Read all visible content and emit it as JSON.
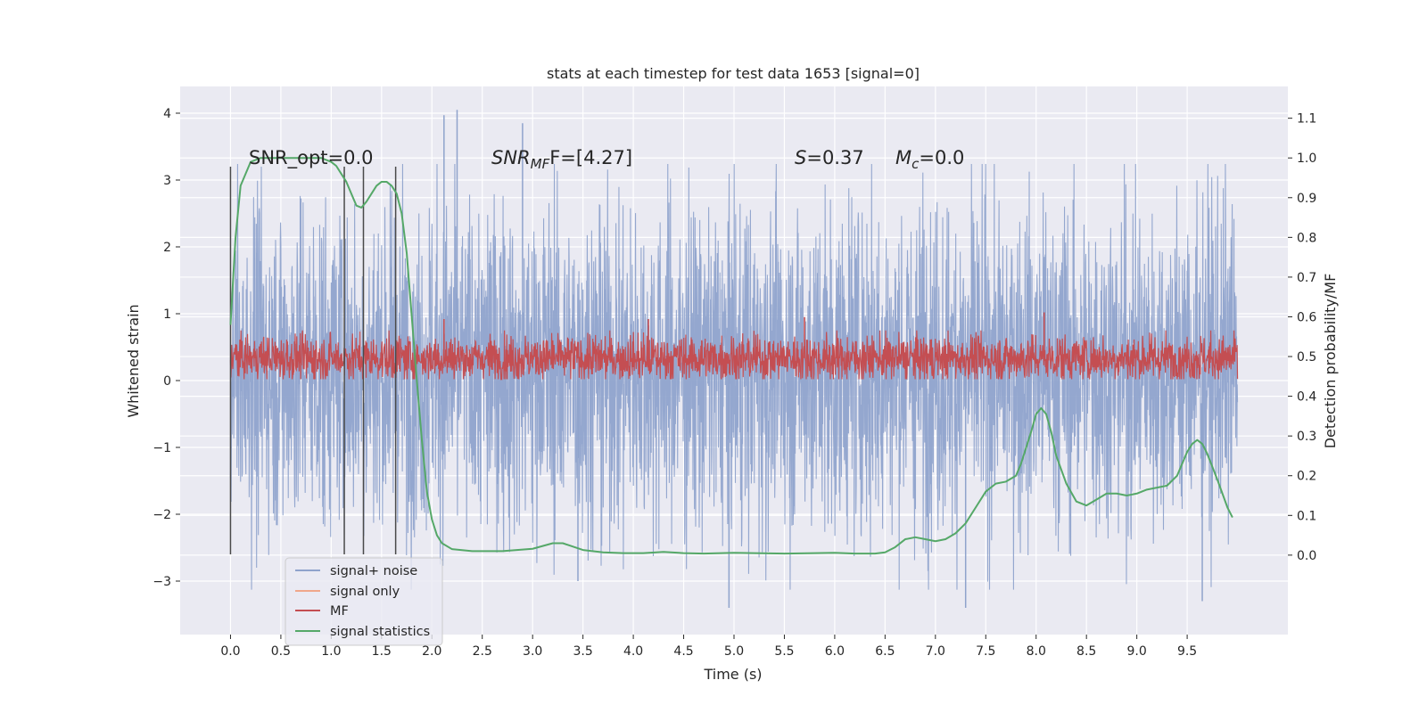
{
  "chart_data": {
    "type": "line",
    "title": "stats at each timestep for test data 1653 [signal=0]",
    "xlabel": "Time (s)",
    "ylabel": "Whitened strain",
    "ylabel_right": "Detection probability/MF",
    "xlim": [
      -0.5,
      10.5
    ],
    "ylim": [
      -3.8,
      4.4
    ],
    "ylim_right": [
      -0.2,
      1.18
    ],
    "xticks": [
      0.0,
      0.5,
      1.0,
      1.5,
      2.0,
      2.5,
      3.0,
      3.5,
      4.0,
      4.5,
      5.0,
      5.5,
      6.0,
      6.5,
      7.0,
      7.5,
      8.0,
      8.5,
      9.0,
      9.5
    ],
    "xtick_labels": [
      "0.0",
      "0.5",
      "1.0",
      "1.5",
      "2.0",
      "2.5",
      "3.0",
      "3.5",
      "4.0",
      "4.5",
      "5.0",
      "5.5",
      "6.0",
      "6.5",
      "7.0",
      "7.5",
      "8.0",
      "8.5",
      "9.0",
      "9.5"
    ],
    "yticks": [
      -3,
      -2,
      -1,
      0,
      1,
      2,
      3,
      4
    ],
    "ytick_labels": [
      "−3",
      "−2",
      "−1",
      "0",
      "1",
      "2",
      "3",
      "4"
    ],
    "yticks_right": [
      0.0,
      0.1,
      0.2,
      0.3,
      0.4,
      0.5,
      0.6,
      0.7,
      0.8,
      0.9,
      1.0,
      1.1
    ],
    "ytick_labels_right": [
      "0.0",
      "0.1",
      "0.2",
      "0.3",
      "0.4",
      "0.5",
      "0.6",
      "0.7",
      "0.8",
      "0.9",
      "1.0",
      "1.1"
    ],
    "grid": true,
    "legend_position": "bottom-left",
    "annotations": {
      "snr_opt": "SNR_opt=0.0",
      "snr_mf_prefix": "SNR",
      "snr_mf_sub": "MF",
      "snr_mf_suffix": "F=[4.27]",
      "s_sym": "S",
      "s_val": "=0.37",
      "mc_sym": "M",
      "mc_sub": "c",
      "mc_val": "=0.0"
    },
    "vlines": {
      "x": [
        0.0,
        1.13,
        1.32,
        1.64
      ],
      "y_range": [
        -2.6,
        3.2
      ]
    },
    "series": [
      {
        "name": "signal+ noise",
        "color": "#8fa3cc",
        "axis": "left",
        "envelope": {
          "x_range": [
            0.0,
            10.0
          ],
          "typical_range": [
            -1.8,
            2.2
          ],
          "peak_min": -3.4,
          "peak_max": 4.05
        },
        "spikes": [
          {
            "x": 2.12,
            "y": 3.97
          },
          {
            "x": 2.25,
            "y": 4.05
          },
          {
            "x": 2.9,
            "y": 3.85
          },
          {
            "x": 7.3,
            "y": -3.4
          },
          {
            "x": 4.95,
            "y": -3.4
          },
          {
            "x": 9.65,
            "y": -3.3
          },
          {
            "x": 3.45,
            "y": -3.0
          }
        ]
      },
      {
        "name": "signal only",
        "color": "#f0a78b",
        "axis": "left"
      },
      {
        "name": "MF",
        "color": "#c44e52",
        "axis": "left",
        "envelope": {
          "x_range": [
            0.0,
            10.0
          ],
          "typical_range": [
            0.02,
            0.65
          ],
          "peak_max": 1.02
        },
        "spikes": [
          {
            "x": 2.12,
            "y": 0.92
          },
          {
            "x": 4.15,
            "y": 0.92
          },
          {
            "x": 5.7,
            "y": 0.95
          },
          {
            "x": 8.08,
            "y": 1.02
          }
        ]
      },
      {
        "name": "signal statistics",
        "color": "#55a868",
        "axis": "right",
        "x": [
          0.0,
          0.05,
          0.1,
          0.2,
          0.3,
          0.5,
          0.7,
          0.9,
          1.0,
          1.05,
          1.1,
          1.15,
          1.2,
          1.25,
          1.3,
          1.35,
          1.4,
          1.45,
          1.5,
          1.55,
          1.6,
          1.65,
          1.7,
          1.75,
          1.8,
          1.85,
          1.9,
          1.95,
          2.0,
          2.05,
          2.1,
          2.2,
          2.4,
          2.7,
          3.0,
          3.2,
          3.3,
          3.5,
          3.7,
          3.9,
          4.1,
          4.3,
          4.5,
          4.7,
          5.0,
          5.2,
          5.5,
          5.8,
          6.0,
          6.2,
          6.4,
          6.5,
          6.6,
          6.7,
          6.8,
          6.9,
          7.0,
          7.1,
          7.2,
          7.3,
          7.4,
          7.5,
          7.6,
          7.7,
          7.8,
          7.85,
          7.9,
          7.95,
          8.0,
          8.05,
          8.1,
          8.15,
          8.2,
          8.3,
          8.4,
          8.5,
          8.6,
          8.7,
          8.8,
          8.9,
          9.0,
          9.1,
          9.2,
          9.3,
          9.4,
          9.5,
          9.55,
          9.6,
          9.65,
          9.7,
          9.8,
          9.9,
          9.95
        ],
        "y": [
          0.58,
          0.8,
          0.93,
          0.99,
          1.0,
          1.0,
          1.0,
          1.0,
          0.99,
          0.98,
          0.96,
          0.94,
          0.91,
          0.88,
          0.875,
          0.89,
          0.91,
          0.93,
          0.94,
          0.94,
          0.93,
          0.91,
          0.86,
          0.76,
          0.6,
          0.44,
          0.29,
          0.16,
          0.09,
          0.05,
          0.03,
          0.015,
          0.01,
          0.01,
          0.016,
          0.03,
          0.03,
          0.013,
          0.007,
          0.005,
          0.005,
          0.008,
          0.005,
          0.004,
          0.006,
          0.005,
          0.004,
          0.005,
          0.006,
          0.004,
          0.004,
          0.007,
          0.02,
          0.04,
          0.045,
          0.04,
          0.035,
          0.04,
          0.055,
          0.08,
          0.12,
          0.16,
          0.18,
          0.185,
          0.2,
          0.23,
          0.27,
          0.31,
          0.355,
          0.37,
          0.355,
          0.31,
          0.25,
          0.18,
          0.135,
          0.125,
          0.14,
          0.155,
          0.155,
          0.15,
          0.155,
          0.165,
          0.17,
          0.175,
          0.2,
          0.26,
          0.28,
          0.29,
          0.28,
          0.255,
          0.19,
          0.12,
          0.095
        ]
      }
    ]
  }
}
